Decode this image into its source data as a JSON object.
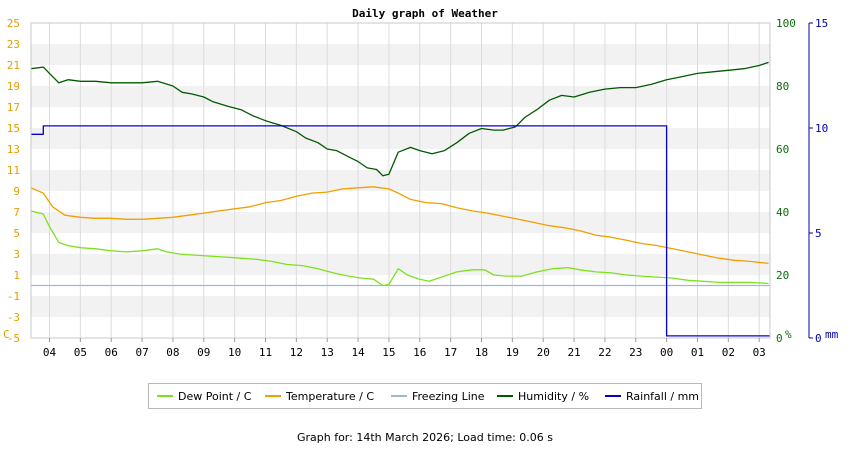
{
  "title": "Daily graph of Weather",
  "footer": "Graph for: 14th March 2026; Load time: 0.06 s",
  "left_axis": {
    "unit_label": "C",
    "ticks": [
      "-5",
      "-3",
      "-1",
      "1",
      "3",
      "5",
      "7",
      "9",
      "11",
      "13",
      "15",
      "17",
      "19",
      "21",
      "23",
      "25"
    ],
    "color": "#e3a000"
  },
  "right_axis_1": {
    "unit_label": "%",
    "ticks": [
      "0",
      "20",
      "40",
      "60",
      "80",
      "100"
    ],
    "color": "#0e6b0e"
  },
  "right_axis_2": {
    "unit_label": "mm",
    "ticks": [
      "0",
      "5",
      "10",
      "15"
    ],
    "color": "#0000a8"
  },
  "legend": [
    {
      "label": "Dew Point / C",
      "color": "#7ee11e"
    },
    {
      "label": "Temperature / C",
      "color": "#f0a000"
    },
    {
      "label": "Freezing Line",
      "color": "#a0b8d8"
    },
    {
      "label": "Humidity / %",
      "color": "#005a00"
    },
    {
      "label": "Rainfall / mm",
      "color": "#0000d0"
    }
  ],
  "chart_data": {
    "type": "line",
    "title": "Daily graph of Weather",
    "x": {
      "ticks": [
        "04",
        "05",
        "06",
        "07",
        "08",
        "09",
        "10",
        "11",
        "12",
        "13",
        "14",
        "15",
        "16",
        "17",
        "18",
        "19",
        "20",
        "21",
        "22",
        "23",
        "00",
        "01",
        "02",
        "03"
      ],
      "range_hours": [
        3.4,
        27.35
      ]
    },
    "y_left": {
      "unit": "C",
      "range": [
        -5,
        25
      ]
    },
    "y_right_humidity": {
      "unit": "%",
      "range": [
        0,
        100
      ]
    },
    "y_right_rain": {
      "unit": "mm",
      "range": [
        0,
        15
      ]
    },
    "series": [
      {
        "name": "Dew Point / C",
        "color": "#7ee11e",
        "axis": "left",
        "points": [
          [
            3.4,
            7.1
          ],
          [
            3.8,
            6.8
          ],
          [
            4.0,
            5.6
          ],
          [
            4.3,
            4.1
          ],
          [
            4.6,
            3.8
          ],
          [
            5.0,
            3.6
          ],
          [
            5.5,
            3.5
          ],
          [
            6.0,
            3.3
          ],
          [
            6.5,
            3.2
          ],
          [
            7.0,
            3.3
          ],
          [
            7.5,
            3.5
          ],
          [
            7.8,
            3.2
          ],
          [
            8.2,
            3.0
          ],
          [
            8.7,
            2.9
          ],
          [
            9.2,
            2.8
          ],
          [
            9.7,
            2.7
          ],
          [
            10.2,
            2.6
          ],
          [
            10.7,
            2.5
          ],
          [
            11.2,
            2.3
          ],
          [
            11.7,
            2.0
          ],
          [
            12.2,
            1.9
          ],
          [
            12.7,
            1.6
          ],
          [
            13.2,
            1.2
          ],
          [
            13.7,
            0.9
          ],
          [
            14.1,
            0.7
          ],
          [
            14.5,
            0.6
          ],
          [
            14.8,
            0.0
          ],
          [
            15.0,
            0.1
          ],
          [
            15.3,
            1.6
          ],
          [
            15.6,
            1.0
          ],
          [
            16.0,
            0.6
          ],
          [
            16.3,
            0.4
          ],
          [
            16.7,
            0.8
          ],
          [
            17.2,
            1.3
          ],
          [
            17.7,
            1.5
          ],
          [
            18.1,
            1.5
          ],
          [
            18.4,
            1.0
          ],
          [
            18.8,
            0.9
          ],
          [
            19.3,
            0.9
          ],
          [
            19.8,
            1.3
          ],
          [
            20.3,
            1.6
          ],
          [
            20.8,
            1.7
          ],
          [
            21.2,
            1.5
          ],
          [
            21.7,
            1.3
          ],
          [
            22.2,
            1.2
          ],
          [
            22.7,
            1.0
          ],
          [
            23.2,
            0.9
          ],
          [
            23.7,
            0.8
          ],
          [
            24.2,
            0.7
          ],
          [
            24.7,
            0.5
          ],
          [
            25.2,
            0.4
          ],
          [
            25.7,
            0.3
          ],
          [
            26.2,
            0.3
          ],
          [
            26.7,
            0.3
          ],
          [
            27.3,
            0.2
          ]
        ]
      },
      {
        "name": "Temperature / C",
        "color": "#f0a000",
        "axis": "left",
        "points": [
          [
            3.4,
            9.3
          ],
          [
            3.8,
            8.8
          ],
          [
            4.1,
            7.5
          ],
          [
            4.5,
            6.7
          ],
          [
            5.0,
            6.5
          ],
          [
            5.5,
            6.4
          ],
          [
            6.0,
            6.4
          ],
          [
            6.5,
            6.3
          ],
          [
            7.0,
            6.3
          ],
          [
            7.5,
            6.4
          ],
          [
            8.0,
            6.5
          ],
          [
            8.5,
            6.7
          ],
          [
            9.0,
            6.9
          ],
          [
            9.5,
            7.1
          ],
          [
            10.0,
            7.3
          ],
          [
            10.5,
            7.5
          ],
          [
            11.0,
            7.9
          ],
          [
            11.5,
            8.1
          ],
          [
            12.0,
            8.5
          ],
          [
            12.5,
            8.8
          ],
          [
            13.0,
            8.9
          ],
          [
            13.5,
            9.2
          ],
          [
            14.0,
            9.3
          ],
          [
            14.5,
            9.4
          ],
          [
            15.0,
            9.2
          ],
          [
            15.3,
            8.8
          ],
          [
            15.7,
            8.2
          ],
          [
            16.2,
            7.9
          ],
          [
            16.7,
            7.8
          ],
          [
            17.2,
            7.4
          ],
          [
            17.7,
            7.1
          ],
          [
            18.2,
            6.9
          ],
          [
            18.7,
            6.6
          ],
          [
            19.2,
            6.3
          ],
          [
            19.7,
            6.0
          ],
          [
            20.2,
            5.7
          ],
          [
            20.7,
            5.5
          ],
          [
            21.2,
            5.2
          ],
          [
            21.7,
            4.8
          ],
          [
            22.2,
            4.6
          ],
          [
            22.7,
            4.3
          ],
          [
            23.2,
            4.0
          ],
          [
            23.7,
            3.8
          ],
          [
            24.2,
            3.5
          ],
          [
            24.7,
            3.2
          ],
          [
            25.2,
            2.9
          ],
          [
            25.7,
            2.6
          ],
          [
            26.2,
            2.4
          ],
          [
            26.7,
            2.3
          ],
          [
            27.3,
            2.1
          ]
        ]
      },
      {
        "name": "Freezing Line",
        "color": "#a0b8d8",
        "axis": "left",
        "points": [
          [
            3.4,
            0.0
          ],
          [
            27.35,
            0.0
          ]
        ]
      },
      {
        "name": "Humidity / %",
        "color": "#005a00",
        "axis": "right_humidity",
        "points": [
          [
            3.4,
            85.5
          ],
          [
            3.8,
            86
          ],
          [
            4.0,
            84
          ],
          [
            4.3,
            81
          ],
          [
            4.6,
            82
          ],
          [
            5.0,
            81.5
          ],
          [
            5.5,
            81.5
          ],
          [
            6.0,
            81
          ],
          [
            6.5,
            81
          ],
          [
            7.0,
            81
          ],
          [
            7.5,
            81.5
          ],
          [
            8.0,
            80
          ],
          [
            8.3,
            78
          ],
          [
            8.6,
            77.5
          ],
          [
            9.0,
            76.5
          ],
          [
            9.3,
            75
          ],
          [
            9.8,
            73.5
          ],
          [
            10.2,
            72.5
          ],
          [
            10.6,
            70.5
          ],
          [
            11.0,
            69
          ],
          [
            11.5,
            67.5
          ],
          [
            12.0,
            65.5
          ],
          [
            12.3,
            63.5
          ],
          [
            12.7,
            62
          ],
          [
            13.0,
            60
          ],
          [
            13.3,
            59.5
          ],
          [
            13.7,
            57.5
          ],
          [
            14.0,
            56
          ],
          [
            14.3,
            54
          ],
          [
            14.6,
            53.5
          ],
          [
            14.8,
            51.5
          ],
          [
            15.0,
            52
          ],
          [
            15.3,
            59
          ],
          [
            15.7,
            60.5
          ],
          [
            16.0,
            59.5
          ],
          [
            16.4,
            58.5
          ],
          [
            16.8,
            59.5
          ],
          [
            17.2,
            62
          ],
          [
            17.6,
            65
          ],
          [
            18.0,
            66.5
          ],
          [
            18.4,
            66
          ],
          [
            18.7,
            66
          ],
          [
            19.1,
            67
          ],
          [
            19.4,
            70
          ],
          [
            19.8,
            72.5
          ],
          [
            20.2,
            75.5
          ],
          [
            20.6,
            77
          ],
          [
            21.0,
            76.5
          ],
          [
            21.5,
            78
          ],
          [
            22.0,
            79
          ],
          [
            22.5,
            79.5
          ],
          [
            23.0,
            79.5
          ],
          [
            23.5,
            80.5
          ],
          [
            24.0,
            82
          ],
          [
            24.5,
            83
          ],
          [
            25.0,
            84
          ],
          [
            25.5,
            84.5
          ],
          [
            26.0,
            85
          ],
          [
            26.5,
            85.5
          ],
          [
            27.0,
            86.5
          ],
          [
            27.3,
            87.5
          ]
        ]
      },
      {
        "name": "Rainfall / mm",
        "color": "#0000d0",
        "axis": "right_rain",
        "points": [
          [
            3.4,
            9.7
          ],
          [
            3.8,
            9.7
          ],
          [
            3.8,
            10.1
          ],
          [
            24.0,
            10.1
          ],
          [
            24.0,
            0.1
          ],
          [
            27.35,
            0.1
          ]
        ]
      }
    ]
  }
}
